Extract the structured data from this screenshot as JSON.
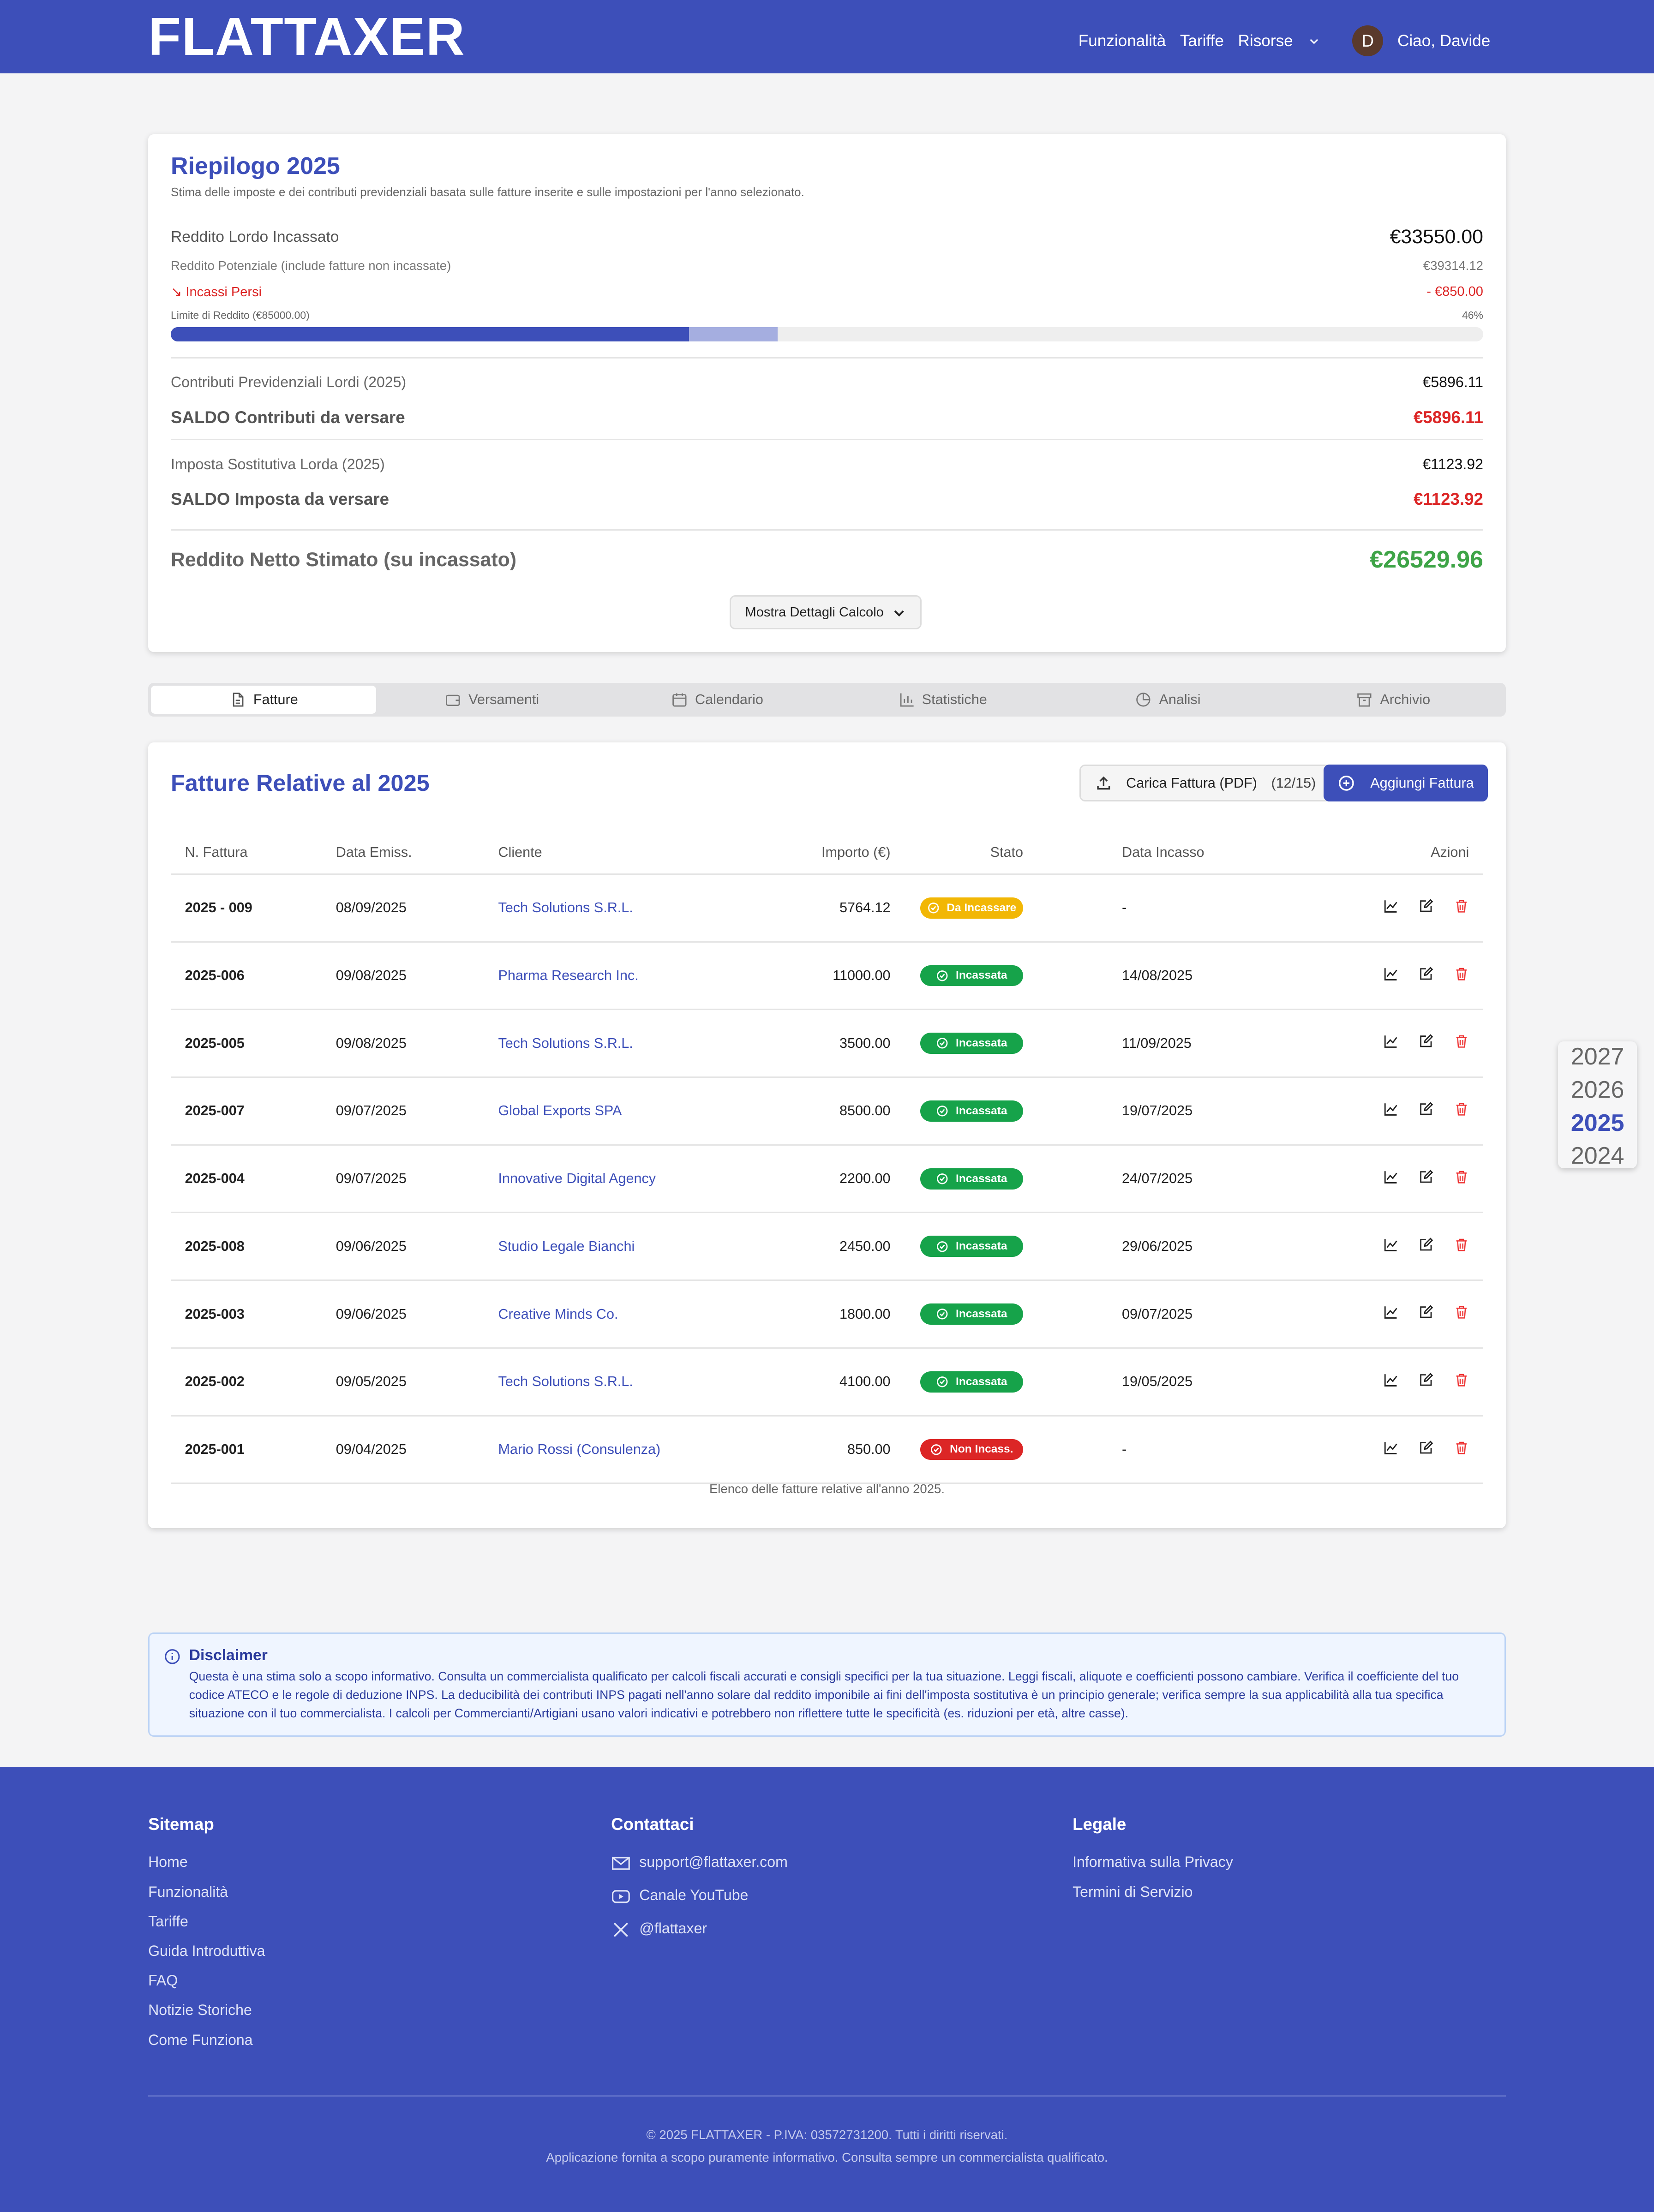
{
  "header": {
    "brand": "FLATTAXER",
    "nav": [
      "Funzionalità",
      "Tariffe",
      "Risorse"
    ],
    "avatar": "D",
    "greeting": "Ciao, Davide"
  },
  "summary": {
    "title": "Riepilogo 2025",
    "subtitle": "Stima delle imposte e dei contributi previdenziali basata sulle fatture inserite e sulle impostazioni per l'anno selezionato.",
    "gross": {
      "label": "Reddito Lordo Incassato",
      "value": "€33550.00"
    },
    "potential": {
      "label": "Reddito Potenziale (include fatture non incassate)",
      "value": "€39314.12"
    },
    "lost": {
      "label": "Incassi Persi",
      "value": "- €850.00"
    },
    "limit": {
      "label": "Limite di Reddito (€85000.00)",
      "percent": "46%"
    },
    "contributions_gross": {
      "label": "Contributi Previdenziali Lordi (2025)",
      "value": "€5896.11"
    },
    "contributions_due": {
      "label": "SALDO Contributi da versare",
      "value": "€5896.11"
    },
    "tax_gross": {
      "label": "Imposta Sostitutiva Lorda (2025)",
      "value": "€1123.92"
    },
    "tax_due": {
      "label": "SALDO Imposta da versare",
      "value": "€1123.92"
    },
    "net": {
      "label": "Reddito Netto Stimato (su incassato)",
      "value": "€26529.96"
    },
    "details_button": "Mostra Dettagli Calcolo"
  },
  "tabs": [
    "Fatture",
    "Versamenti",
    "Calendario",
    "Statistiche",
    "Analisi",
    "Archivio"
  ],
  "invoices": {
    "title": "Fatture Relative al 2025",
    "upload_button": "Carica Fattura (PDF)",
    "upload_count": "(12/15)",
    "add_button": "Aggiungi Fattura",
    "columns": [
      "N. Fattura",
      "Data Emiss.",
      "Cliente",
      "Importo (€)",
      "Stato",
      "Data Incasso",
      "Azioni"
    ],
    "rows": [
      {
        "number": "2025 - 009",
        "date": "08/09/2025",
        "client": "Tech Solutions S.R.L.",
        "amount": "5764.12",
        "status": "Da Incassare",
        "status_color": "#f2b705",
        "paid_date": "-"
      },
      {
        "number": "2025-006",
        "date": "09/08/2025",
        "client": "Pharma Research Inc.",
        "amount": "11000.00",
        "status": "Incassata",
        "status_color": "#16a34a",
        "paid_date": "14/08/2025"
      },
      {
        "number": "2025-005",
        "date": "09/08/2025",
        "client": "Tech Solutions S.R.L.",
        "amount": "3500.00",
        "status": "Incassata",
        "status_color": "#16a34a",
        "paid_date": "11/09/2025"
      },
      {
        "number": "2025-007",
        "date": "09/07/2025",
        "client": "Global Exports SPA",
        "amount": "8500.00",
        "status": "Incassata",
        "status_color": "#16a34a",
        "paid_date": "19/07/2025"
      },
      {
        "number": "2025-004",
        "date": "09/07/2025",
        "client": "Innovative Digital Agency",
        "amount": "2200.00",
        "status": "Incassata",
        "status_color": "#16a34a",
        "paid_date": "24/07/2025"
      },
      {
        "number": "2025-008",
        "date": "09/06/2025",
        "client": "Studio Legale Bianchi",
        "amount": "2450.00",
        "status": "Incassata",
        "status_color": "#16a34a",
        "paid_date": "29/06/2025"
      },
      {
        "number": "2025-003",
        "date": "09/06/2025",
        "client": "Creative Minds Co.",
        "amount": "1800.00",
        "status": "Incassata",
        "status_color": "#16a34a",
        "paid_date": "09/07/2025"
      },
      {
        "number": "2025-002",
        "date": "09/05/2025",
        "client": "Tech Solutions S.R.L.",
        "amount": "4100.00",
        "status": "Incassata",
        "status_color": "#16a34a",
        "paid_date": "19/05/2025"
      },
      {
        "number": "2025-001",
        "date": "09/04/2025",
        "client": "Mario Rossi (Consulenza)",
        "amount": "850.00",
        "status": "Non Incass.",
        "status_color": "#dc2626",
        "paid_date": "-"
      }
    ],
    "caption": "Elenco delle fatture relative all'anno 2025."
  },
  "years": [
    "2027",
    "2026",
    "2025",
    "2024"
  ],
  "disclaimer": {
    "title": "Disclaimer",
    "text": "Questa è una stima solo a scopo informativo. Consulta un commercialista qualificato per calcoli fiscali accurati e consigli specifici per la tua situazione. Leggi fiscali, aliquote e coefficienti possono cambiare. Verifica il coefficiente del tuo codice ATECO e le regole di deduzione INPS. La deducibilità dei contributi INPS pagati nell'anno solare dal reddito imponibile ai fini dell'imposta sostitutiva è un principio generale; verifica sempre la sua applicabilità alla tua specifica situazione con il tuo commercialista. I calcoli per Commercianti/Artigiani usano valori indicativi e potrebbero non riflettere tutte le specificità (es. riduzioni per età, altre casse)."
  },
  "footer": {
    "sitemap": {
      "title": "Sitemap",
      "links": [
        "Home",
        "Funzionalità",
        "Tariffe",
        "Guida Introduttiva",
        "FAQ",
        "Notizie Storiche",
        "Come Funziona"
      ]
    },
    "contact": {
      "title": "Contattaci",
      "links": [
        "support@flattaxer.com",
        "Canale YouTube",
        "@flattaxer"
      ]
    },
    "legal": {
      "title": "Legale",
      "links": [
        "Informativa sulla Privacy",
        "Termini di Servizio"
      ]
    },
    "copyright": "© 2025 FLATTAXER - P.IVA: 03572731200. Tutti i diritti riservati.",
    "note": "Applicazione fornita a scopo puramente informativo. Consulta sempre un commercialista qualificato."
  }
}
